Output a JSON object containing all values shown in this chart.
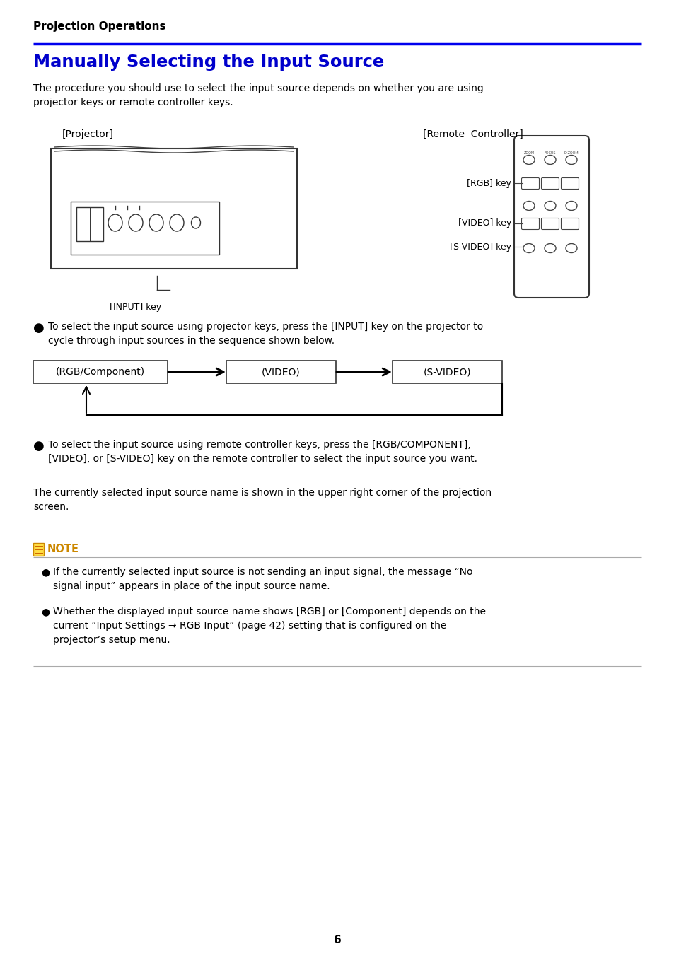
{
  "page_title": "Projection Operations",
  "section_title": "Manually Selecting the Input Source",
  "intro_text": "The procedure you should use to select the input source depends on whether you are using\nprojector keys or remote controller keys.",
  "projector_label": "[Projector]",
  "remote_label": "[Remote  Controller]",
  "input_key_label": "[INPUT] key",
  "rgb_key_label": "[RGB] key",
  "video_key_label": "[VIDEO] key",
  "svideo_key_label": "[S-VIDEO] key",
  "bullet1_text": "To select the input source using projector keys, press the [INPUT] key on the projector to\ncycle through input sources in the sequence shown below.",
  "flow_items": [
    "(RGB/Component)",
    "(VIDEO)",
    "(S-VIDEO)"
  ],
  "bullet2_text": "To select the input source using remote controller keys, press the [RGB/COMPONENT],\n[VIDEO], or [S-VIDEO] key on the remote controller to select the input source you want.",
  "para_text": "The currently selected input source name is shown in the upper right corner of the projection\nscreen.",
  "note_bullet1": "If the currently selected input source is not sending an input signal, the message “No\nsignal input” appears in place of the input source name.",
  "note_bullet2": "Whether the displayed input source name shows [RGB] or [Component] depends on the\ncurrent “Input Settings → RGB Input” (page 42) setting that is configured on the\nprojector’s setup menu.",
  "page_num": "6",
  "title_color": "#0000cc",
  "header_color": "#000000",
  "line_color": "#0000ee",
  "note_color": "#cc8800",
  "bg_color": "#ffffff",
  "text_color": "#000000"
}
